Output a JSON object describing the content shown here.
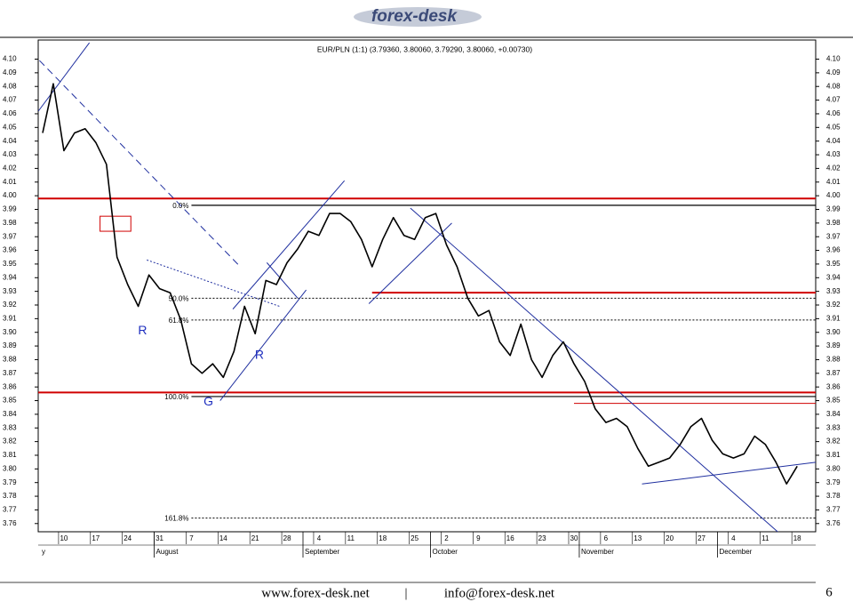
{
  "header": {
    "logo": "forex-desk"
  },
  "chart_data": {
    "type": "line",
    "title": "EUR/PLN (1:1) (3.79360, 3.80060, 3.79290, 3.80060, +0.00730)",
    "categories": [
      null,
      null,
      "10",
      null,
      null,
      "17",
      null,
      null,
      "24",
      null,
      null,
      "31",
      null,
      null,
      "7",
      null,
      null,
      "14",
      null,
      null,
      "21",
      null,
      null,
      "28",
      null,
      null,
      "4",
      null,
      null,
      "11",
      null,
      null,
      "18",
      null,
      null,
      "25",
      null,
      null,
      "2",
      null,
      null,
      "9",
      null,
      null,
      "16",
      null,
      null,
      "23",
      null,
      null,
      "30",
      null,
      null,
      "6",
      null,
      null,
      "13",
      null,
      null,
      "20",
      null,
      null,
      "27",
      null,
      null,
      "4",
      null,
      null,
      "11",
      null,
      null,
      "18"
    ],
    "month_categories": [
      "y",
      null,
      null,
      null,
      null,
      null,
      null,
      null,
      null,
      null,
      null,
      "August",
      null,
      null,
      null,
      null,
      null,
      null,
      null,
      null,
      null,
      null,
      null,
      null,
      null,
      "September",
      null,
      null,
      null,
      null,
      null,
      null,
      null,
      null,
      null,
      null,
      null,
      "October",
      null,
      null,
      null,
      null,
      null,
      null,
      null,
      null,
      null,
      null,
      null,
      null,
      null,
      "November",
      null,
      null,
      null,
      null,
      null,
      null,
      null,
      null,
      null,
      null,
      null,
      null,
      "December",
      null,
      null,
      null,
      null,
      null,
      null,
      null
    ],
    "color": "#000000",
    "values": [
      4.046,
      4.082,
      4.033,
      4.046,
      4.049,
      4.039,
      4.023,
      3.955,
      3.935,
      3.919,
      3.942,
      3.932,
      3.929,
      3.909,
      3.877,
      3.87,
      3.877,
      3.867,
      3.886,
      3.919,
      3.899,
      3.938,
      3.935,
      3.951,
      3.961,
      3.974,
      3.971,
      3.987,
      3.987,
      3.981,
      3.968,
      3.948,
      3.968,
      3.984,
      3.971,
      3.968,
      3.984,
      3.987,
      3.964,
      3.948,
      3.925,
      3.912,
      3.916,
      3.893,
      3.883,
      3.906,
      3.88,
      3.867,
      3.883,
      3.893,
      3.877,
      3.864,
      3.844,
      3.834,
      3.837,
      3.831,
      3.815,
      3.802,
      3.805,
      3.808,
      3.818,
      3.831,
      3.837,
      3.821,
      3.811,
      3.808,
      3.811,
      3.824,
      3.818,
      3.805,
      3.789,
      3.802
    ],
    "ylim": [
      3.754,
      4.114
    ],
    "yticks": [
      3.76,
      3.77,
      3.78,
      3.79,
      {
        "value": 3.8,
        "label": "3.80"
      },
      3.81,
      3.82,
      3.83,
      3.84,
      3.85,
      3.86,
      3.87,
      3.88,
      3.89,
      {
        "value": 3.9,
        "label": "3.90"
      },
      3.91,
      3.92,
      3.93,
      3.94,
      3.95,
      3.96,
      3.97,
      3.98,
      3.99,
      {
        "value": 4.0,
        "label": "4.00"
      },
      4.01,
      4.02,
      4.03,
      4.04,
      4.05,
      4.06,
      4.07,
      4.08,
      4.09,
      {
        "value": 4.1,
        "label": "4.10"
      }
    ],
    "levels": [
      {
        "value": 3.998,
        "color": "#d00000"
      },
      {
        "value": 3.856,
        "color": "#d00000"
      },
      {
        "value": 3.929,
        "color": "#d00000",
        "start": 31
      },
      {
        "value": 3.848,
        "color": "#d00000",
        "start": 50
      }
    ],
    "fib_levels": [
      {
        "label": "0.0%",
        "value": 3.993,
        "style": "solid",
        "start": 14
      },
      {
        "label": "50.0%",
        "value": 3.925,
        "style": "dotted",
        "start": 14
      },
      {
        "label": "61.8%",
        "value": 3.909,
        "style": "dotted",
        "start": 14
      },
      {
        "label": "100.0%",
        "value": 3.853,
        "style": "solid",
        "start": 14
      },
      {
        "label": "161.8%",
        "value": 3.764,
        "style": "dotted",
        "start": 14
      }
    ],
    "trendlines": [
      {
        "color": "#1f2f9f",
        "style": "solid",
        "x": [
          -0.4,
          4.4
        ],
        "y": [
          4.062,
          4.112
        ]
      },
      {
        "color": "#1f2f9f",
        "style": "dashed",
        "x": [
          -0.3,
          18.6
        ],
        "y": [
          4.099,
          3.948
        ]
      },
      {
        "color": "#1f2f9f",
        "style": "dotted",
        "x": [
          9.8,
          22.3
        ],
        "y": [
          3.953,
          3.919
        ]
      },
      {
        "color": "#1f2f9f",
        "style": "solid",
        "x": [
          17.9,
          28.4
        ],
        "y": [
          3.917,
          4.011
        ]
      },
      {
        "color": "#1f2f9f",
        "style": "solid",
        "x": [
          16.7,
          24.8
        ],
        "y": [
          3.85,
          3.931
        ]
      },
      {
        "color": "#1f2f9f",
        "style": "solid",
        "x": [
          21.1,
          24.0
        ],
        "y": [
          3.951,
          3.925
        ]
      },
      {
        "color": "#1f2f9f",
        "style": "solid",
        "x": [
          34.6,
          69.6
        ],
        "y": [
          3.991,
          3.751
        ]
      },
      {
        "color": "#1f2f9f",
        "style": "solid",
        "x": [
          30.7,
          38.5
        ],
        "y": [
          3.921,
          3.98
        ]
      },
      {
        "color": "#1f2f9f",
        "style": "solid",
        "x": [
          56.4,
          72.9
        ],
        "y": [
          3.789,
          3.805
        ]
      }
    ],
    "boxes": [
      {
        "color": "#d00000",
        "x": [
          5.4,
          8.3
        ],
        "y": [
          3.985,
          3.974
        ]
      }
    ],
    "markers": [
      {
        "label": "R",
        "x": 9.4,
        "y": 3.901
      },
      {
        "label": "R",
        "x": 20.4,
        "y": 3.883
      },
      {
        "label": "G",
        "x": 15.6,
        "y": 3.849
      }
    ]
  },
  "footer": {
    "website": "www.forex-desk.net",
    "separator": "|",
    "email": "info@forex-desk.net",
    "page": "6"
  }
}
